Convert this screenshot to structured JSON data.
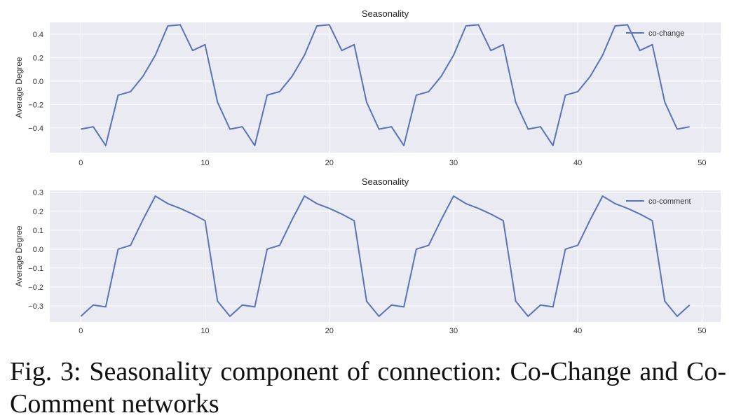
{
  "chart_data": [
    {
      "type": "line",
      "title": "Seasonality",
      "xlabel": "",
      "ylabel": "Average Degree",
      "xlim": [
        -2.5,
        51.5
      ],
      "ylim": [
        -0.61,
        0.5
      ],
      "xticks": [
        0,
        10,
        20,
        30,
        40,
        50
      ],
      "yticks": [
        0.4,
        0.2,
        0.0,
        -0.2,
        -0.4
      ],
      "ytick_labels": [
        "0.4",
        "0.2",
        "0.0",
        "−0.2",
        "−0.4"
      ],
      "grid": true,
      "legend_position": "top-right",
      "color": "#5a73b5",
      "series": [
        {
          "name": "co-change",
          "x": [
            0,
            1,
            2,
            3,
            4,
            5,
            6,
            7,
            8,
            9,
            10,
            11,
            12,
            13,
            14,
            15,
            16,
            17,
            18,
            19,
            20,
            21,
            22,
            23,
            24,
            25,
            26,
            27,
            28,
            29,
            30,
            31,
            32,
            33,
            34,
            35,
            36,
            37,
            38,
            39,
            40,
            41,
            42,
            43,
            44,
            45,
            46,
            47,
            48,
            49
          ],
          "values": [
            -0.41,
            -0.39,
            -0.55,
            -0.12,
            -0.09,
            0.04,
            0.22,
            0.47,
            0.48,
            0.26,
            0.31,
            -0.18,
            -0.41,
            -0.39,
            -0.55,
            -0.12,
            -0.09,
            0.04,
            0.22,
            0.47,
            0.48,
            0.26,
            0.31,
            -0.18,
            -0.41,
            -0.39,
            -0.55,
            -0.12,
            -0.09,
            0.04,
            0.22,
            0.47,
            0.48,
            0.26,
            0.31,
            -0.18,
            -0.41,
            -0.39,
            -0.55,
            -0.12,
            -0.09,
            0.04,
            0.22,
            0.47,
            0.48,
            0.26,
            0.31,
            -0.18,
            -0.41,
            -0.39
          ]
        }
      ]
    },
    {
      "type": "line",
      "title": "Seasonality",
      "xlabel": "",
      "ylabel": "Average Degree",
      "xlim": [
        -2.5,
        51.5
      ],
      "ylim": [
        -0.385,
        0.31
      ],
      "xticks": [
        0,
        10,
        20,
        30,
        40,
        50
      ],
      "yticks": [
        0.3,
        0.2,
        0.1,
        0.0,
        -0.1,
        -0.2,
        -0.3
      ],
      "ytick_labels": [
        "0.3",
        "0.2",
        "0.1",
        "0.0",
        "−0.1",
        "−0.2",
        "−0.3"
      ],
      "grid": true,
      "legend_position": "top-right",
      "color": "#5a73b5",
      "series": [
        {
          "name": "co-comment",
          "x": [
            0,
            1,
            2,
            3,
            4,
            5,
            6,
            7,
            8,
            9,
            10,
            11,
            12,
            13,
            14,
            15,
            16,
            17,
            18,
            19,
            20,
            21,
            22,
            23,
            24,
            25,
            26,
            27,
            28,
            29,
            30,
            31,
            32,
            33,
            34,
            35,
            36,
            37,
            38,
            39,
            40,
            41,
            42,
            43,
            44,
            45,
            46,
            47,
            48,
            49
          ],
          "values": [
            -0.355,
            -0.295,
            -0.305,
            0.0,
            0.02,
            0.155,
            0.28,
            0.24,
            0.215,
            0.185,
            0.15,
            -0.275,
            -0.355,
            -0.295,
            -0.305,
            0.0,
            0.02,
            0.155,
            0.28,
            0.24,
            0.215,
            0.185,
            0.15,
            -0.275,
            -0.355,
            -0.295,
            -0.305,
            0.0,
            0.02,
            0.155,
            0.28,
            0.24,
            0.215,
            0.185,
            0.15,
            -0.275,
            -0.355,
            -0.295,
            -0.305,
            0.0,
            0.02,
            0.155,
            0.28,
            0.24,
            0.215,
            0.185,
            0.15,
            -0.275,
            -0.355,
            -0.295
          ]
        }
      ]
    }
  ],
  "caption": "Fig. 3: Seasonality component of connection: Co-Change and Co-Comment networks"
}
